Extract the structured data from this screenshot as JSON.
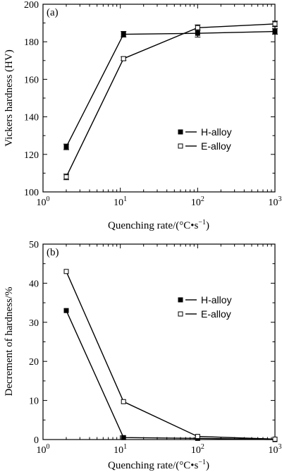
{
  "colors": {
    "ink": "#000000",
    "background": "#ffffff",
    "open_marker_fill": "#ffffff"
  },
  "chart_data": [
    {
      "type": "line",
      "panel_label": "(a)",
      "xlabel": "Quenching rate/(°C•s",
      "xlabel_sup": "−1",
      "xlabel_close": ")",
      "x_scale": "log",
      "xlim": [
        1,
        1000
      ],
      "ylabel": "Vickers hardness (HV)",
      "ylim": [
        100,
        200
      ],
      "yticks": [
        100,
        120,
        140,
        160,
        180,
        200
      ],
      "xticks": [
        {
          "value": 1,
          "base": "10",
          "exp": "0"
        },
        {
          "value": 10,
          "base": "10",
          "exp": "1"
        },
        {
          "value": 100,
          "base": "10",
          "exp": "2"
        },
        {
          "value": 1000,
          "base": "10",
          "exp": "3"
        }
      ],
      "legend_position": "middle-right",
      "error_bars": true,
      "series": [
        {
          "name": "H-alloy",
          "marker": "filled-square",
          "x": [
            2,
            11,
            100,
            1000
          ],
          "y": [
            124,
            184,
            184.5,
            185.5
          ],
          "err": [
            1.5,
            1.5,
            2,
            1.5
          ]
        },
        {
          "name": "E-alloy",
          "marker": "open-square",
          "x": [
            2,
            11,
            100,
            1000
          ],
          "y": [
            108,
            171,
            187.5,
            189.5
          ],
          "err": [
            1.5,
            1,
            1.5,
            1.5
          ]
        }
      ]
    },
    {
      "type": "line",
      "panel_label": "(b)",
      "xlabel": "Quenching rate/(°C•s",
      "xlabel_sup": "−1",
      "xlabel_close": ")",
      "x_scale": "log",
      "xlim": [
        1,
        1000
      ],
      "ylabel": "Decrement of hardness/%",
      "ylim": [
        0,
        50
      ],
      "yticks": [
        0,
        10,
        20,
        30,
        40,
        50
      ],
      "xticks": [
        {
          "value": 1,
          "base": "10",
          "exp": "0"
        },
        {
          "value": 10,
          "base": "10",
          "exp": "1"
        },
        {
          "value": 100,
          "base": "10",
          "exp": "2"
        },
        {
          "value": 1000,
          "base": "10",
          "exp": "3"
        }
      ],
      "legend_position": "middle-right",
      "error_bars": false,
      "series": [
        {
          "name": "H-alloy",
          "marker": "filled-square",
          "x": [
            2,
            11,
            100,
            1000
          ],
          "y": [
            33,
            0.5,
            0.3,
            0
          ]
        },
        {
          "name": "E-alloy",
          "marker": "open-square",
          "x": [
            2,
            11,
            100,
            1000
          ],
          "y": [
            43,
            9.7,
            0.8,
            0.1
          ]
        }
      ]
    }
  ]
}
